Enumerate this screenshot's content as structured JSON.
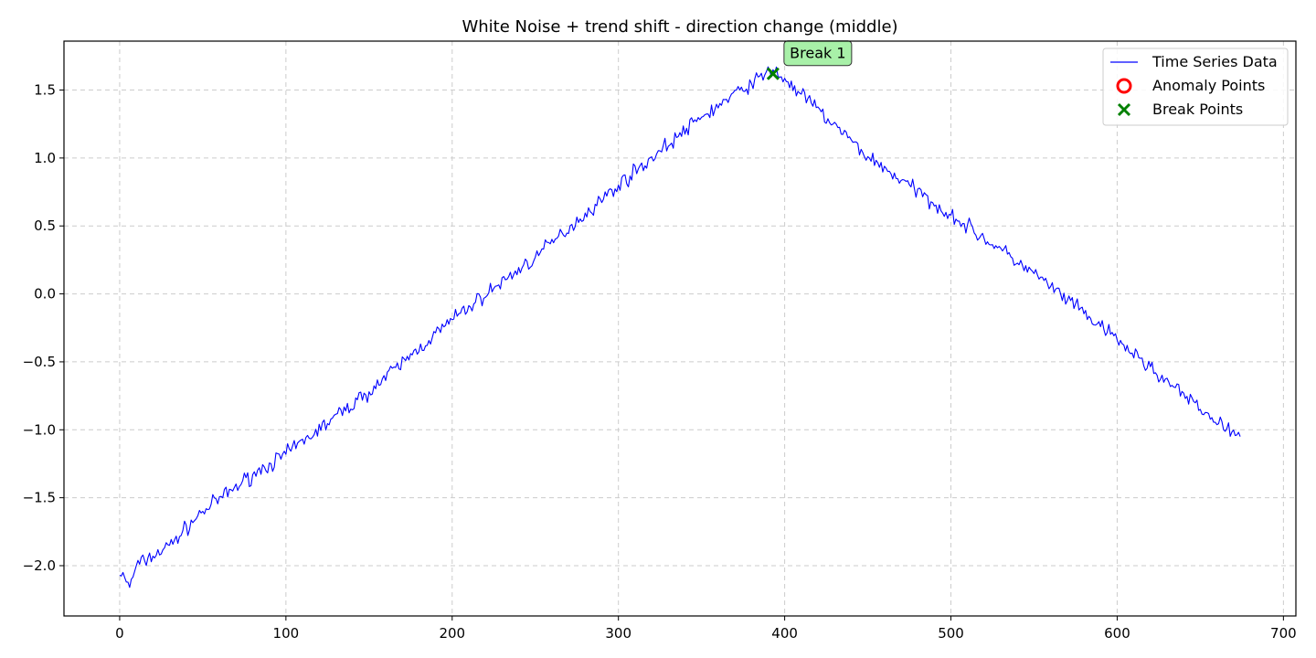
{
  "chart_data": {
    "type": "line",
    "title": "White Noise + trend shift - direction change (middle)",
    "xlabel": "",
    "ylabel": "",
    "xlim": [
      -33.5,
      707.5
    ],
    "ylim": [
      -2.37,
      1.86
    ],
    "grid": true,
    "legend_position": "top-right",
    "x_ticks": [
      0,
      100,
      200,
      300,
      400,
      500,
      600,
      700
    ],
    "x_tick_labels": [
      "0",
      "100",
      "200",
      "300",
      "400",
      "500",
      "600",
      "700"
    ],
    "y_ticks": [
      -2.0,
      -1.5,
      -1.0,
      -0.5,
      0.0,
      0.5,
      1.0,
      1.5
    ],
    "y_tick_labels": [
      "−2.0",
      "−1.5",
      "−1.0",
      "−0.5",
      "0.0",
      "0.5",
      "1.0",
      "1.5"
    ],
    "series": [
      {
        "name": "Time Series Data",
        "color": "#0000ff",
        "x_start": 0,
        "x_end": 674,
        "anchors": [
          [
            0,
            -2.07
          ],
          [
            2,
            -2.05
          ],
          [
            4,
            -2.12
          ],
          [
            6,
            -2.16
          ],
          [
            10,
            -2.0
          ],
          [
            20,
            -1.93
          ],
          [
            30,
            -1.85
          ],
          [
            50,
            -1.6
          ],
          [
            80,
            -1.33
          ],
          [
            100,
            -1.18
          ],
          [
            150,
            -0.72
          ],
          [
            200,
            -0.19
          ],
          [
            250,
            0.27
          ],
          [
            300,
            0.8
          ],
          [
            350,
            1.3
          ],
          [
            380,
            1.55
          ],
          [
            393,
            1.65
          ],
          [
            410,
            1.47
          ],
          [
            450,
            1.01
          ],
          [
            500,
            0.58
          ],
          [
            550,
            0.15
          ],
          [
            600,
            -0.34
          ],
          [
            650,
            -0.85
          ],
          [
            666,
            -0.99
          ],
          [
            674,
            -1.05
          ]
        ],
        "noise_amplitude": 0.035,
        "noise_seed": 7
      }
    ],
    "anomaly_points": [],
    "break_points": [
      {
        "x": 393,
        "y": 1.62,
        "label": "Break 1"
      }
    ],
    "legend": [
      {
        "label": "Time Series Data",
        "kind": "line",
        "color": "#0000ff"
      },
      {
        "label": "Anomaly Points",
        "kind": "circle",
        "color": "#ff0000"
      },
      {
        "label": "Break Points",
        "kind": "cross",
        "color": "#008000"
      }
    ],
    "annotation_colors": {
      "box_fill": "#a8f0a8",
      "box_stroke": "#333333"
    }
  }
}
